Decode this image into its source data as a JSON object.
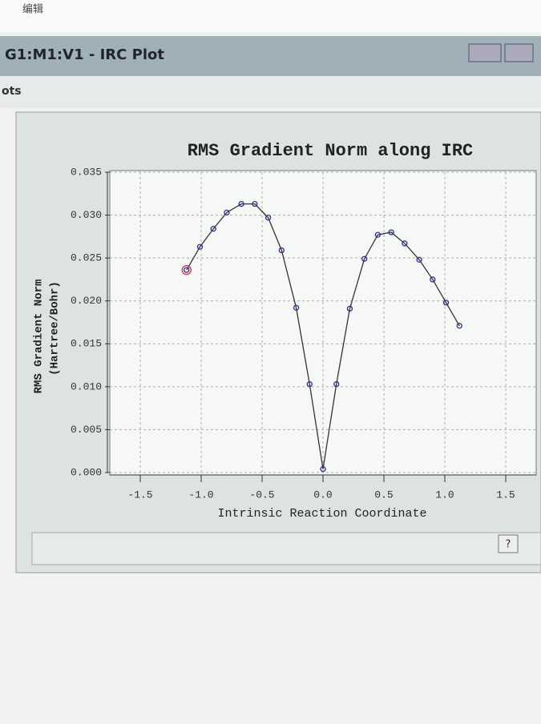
{
  "app": {
    "menu": "编辑",
    "window_title": "G1:M1:V1 - IRC Plot",
    "submenu": "ots",
    "help_button": "?"
  },
  "chart_data": {
    "type": "line",
    "title": "RMS Gradient Norm along IRC",
    "xlabel": "Intrinsic Reaction Coordinate",
    "ylabel": [
      "RMS Gradient Norm",
      "(Hartree/Bohr)"
    ],
    "x": [
      -1.12,
      -1.01,
      -0.9,
      -0.79,
      -0.67,
      -0.56,
      -0.45,
      -0.34,
      -0.22,
      -0.11,
      0,
      0.11,
      0.22,
      0.34,
      0.45,
      0.56,
      0.67,
      0.79,
      0.9,
      1.01,
      1.12
    ],
    "series": [
      {
        "color": "#2b2b9a",
        "values": [
          0.0236,
          0.0263,
          0.0284,
          0.0303,
          0.0313,
          0.0313,
          0.0297,
          0.0259,
          0.0192,
          0.0103,
          0.0004,
          0.0103,
          0.0191,
          0.0249,
          0.0277,
          0.028,
          0.0267,
          0.0248,
          0.0225,
          0.0198,
          0.0171
        ]
      }
    ],
    "xlim": [
      -1.75,
      1.75
    ],
    "ylim": [
      0,
      0.035
    ],
    "xticks": [
      -1.5,
      {
        "value": -1.0,
        "label": "-1.0"
      },
      -0.5,
      {
        "value": 0,
        "label": "0.0"
      },
      0.5,
      {
        "value": 1.0,
        "label": "1.0"
      },
      1.5
    ],
    "yticks": [
      {
        "value": 0,
        "label": "0.000"
      },
      {
        "value": 0.005,
        "label": "0.005"
      },
      {
        "value": 0.01,
        "label": "0.010"
      },
      {
        "value": 0.015,
        "label": "0.015"
      },
      {
        "value": 0.02,
        "label": "0.020"
      },
      {
        "value": 0.025,
        "label": "0.025"
      },
      {
        "value": 0.03,
        "label": "0.030"
      },
      {
        "value": 0.035,
        "label": "0.035"
      }
    ],
    "grid": true
  }
}
